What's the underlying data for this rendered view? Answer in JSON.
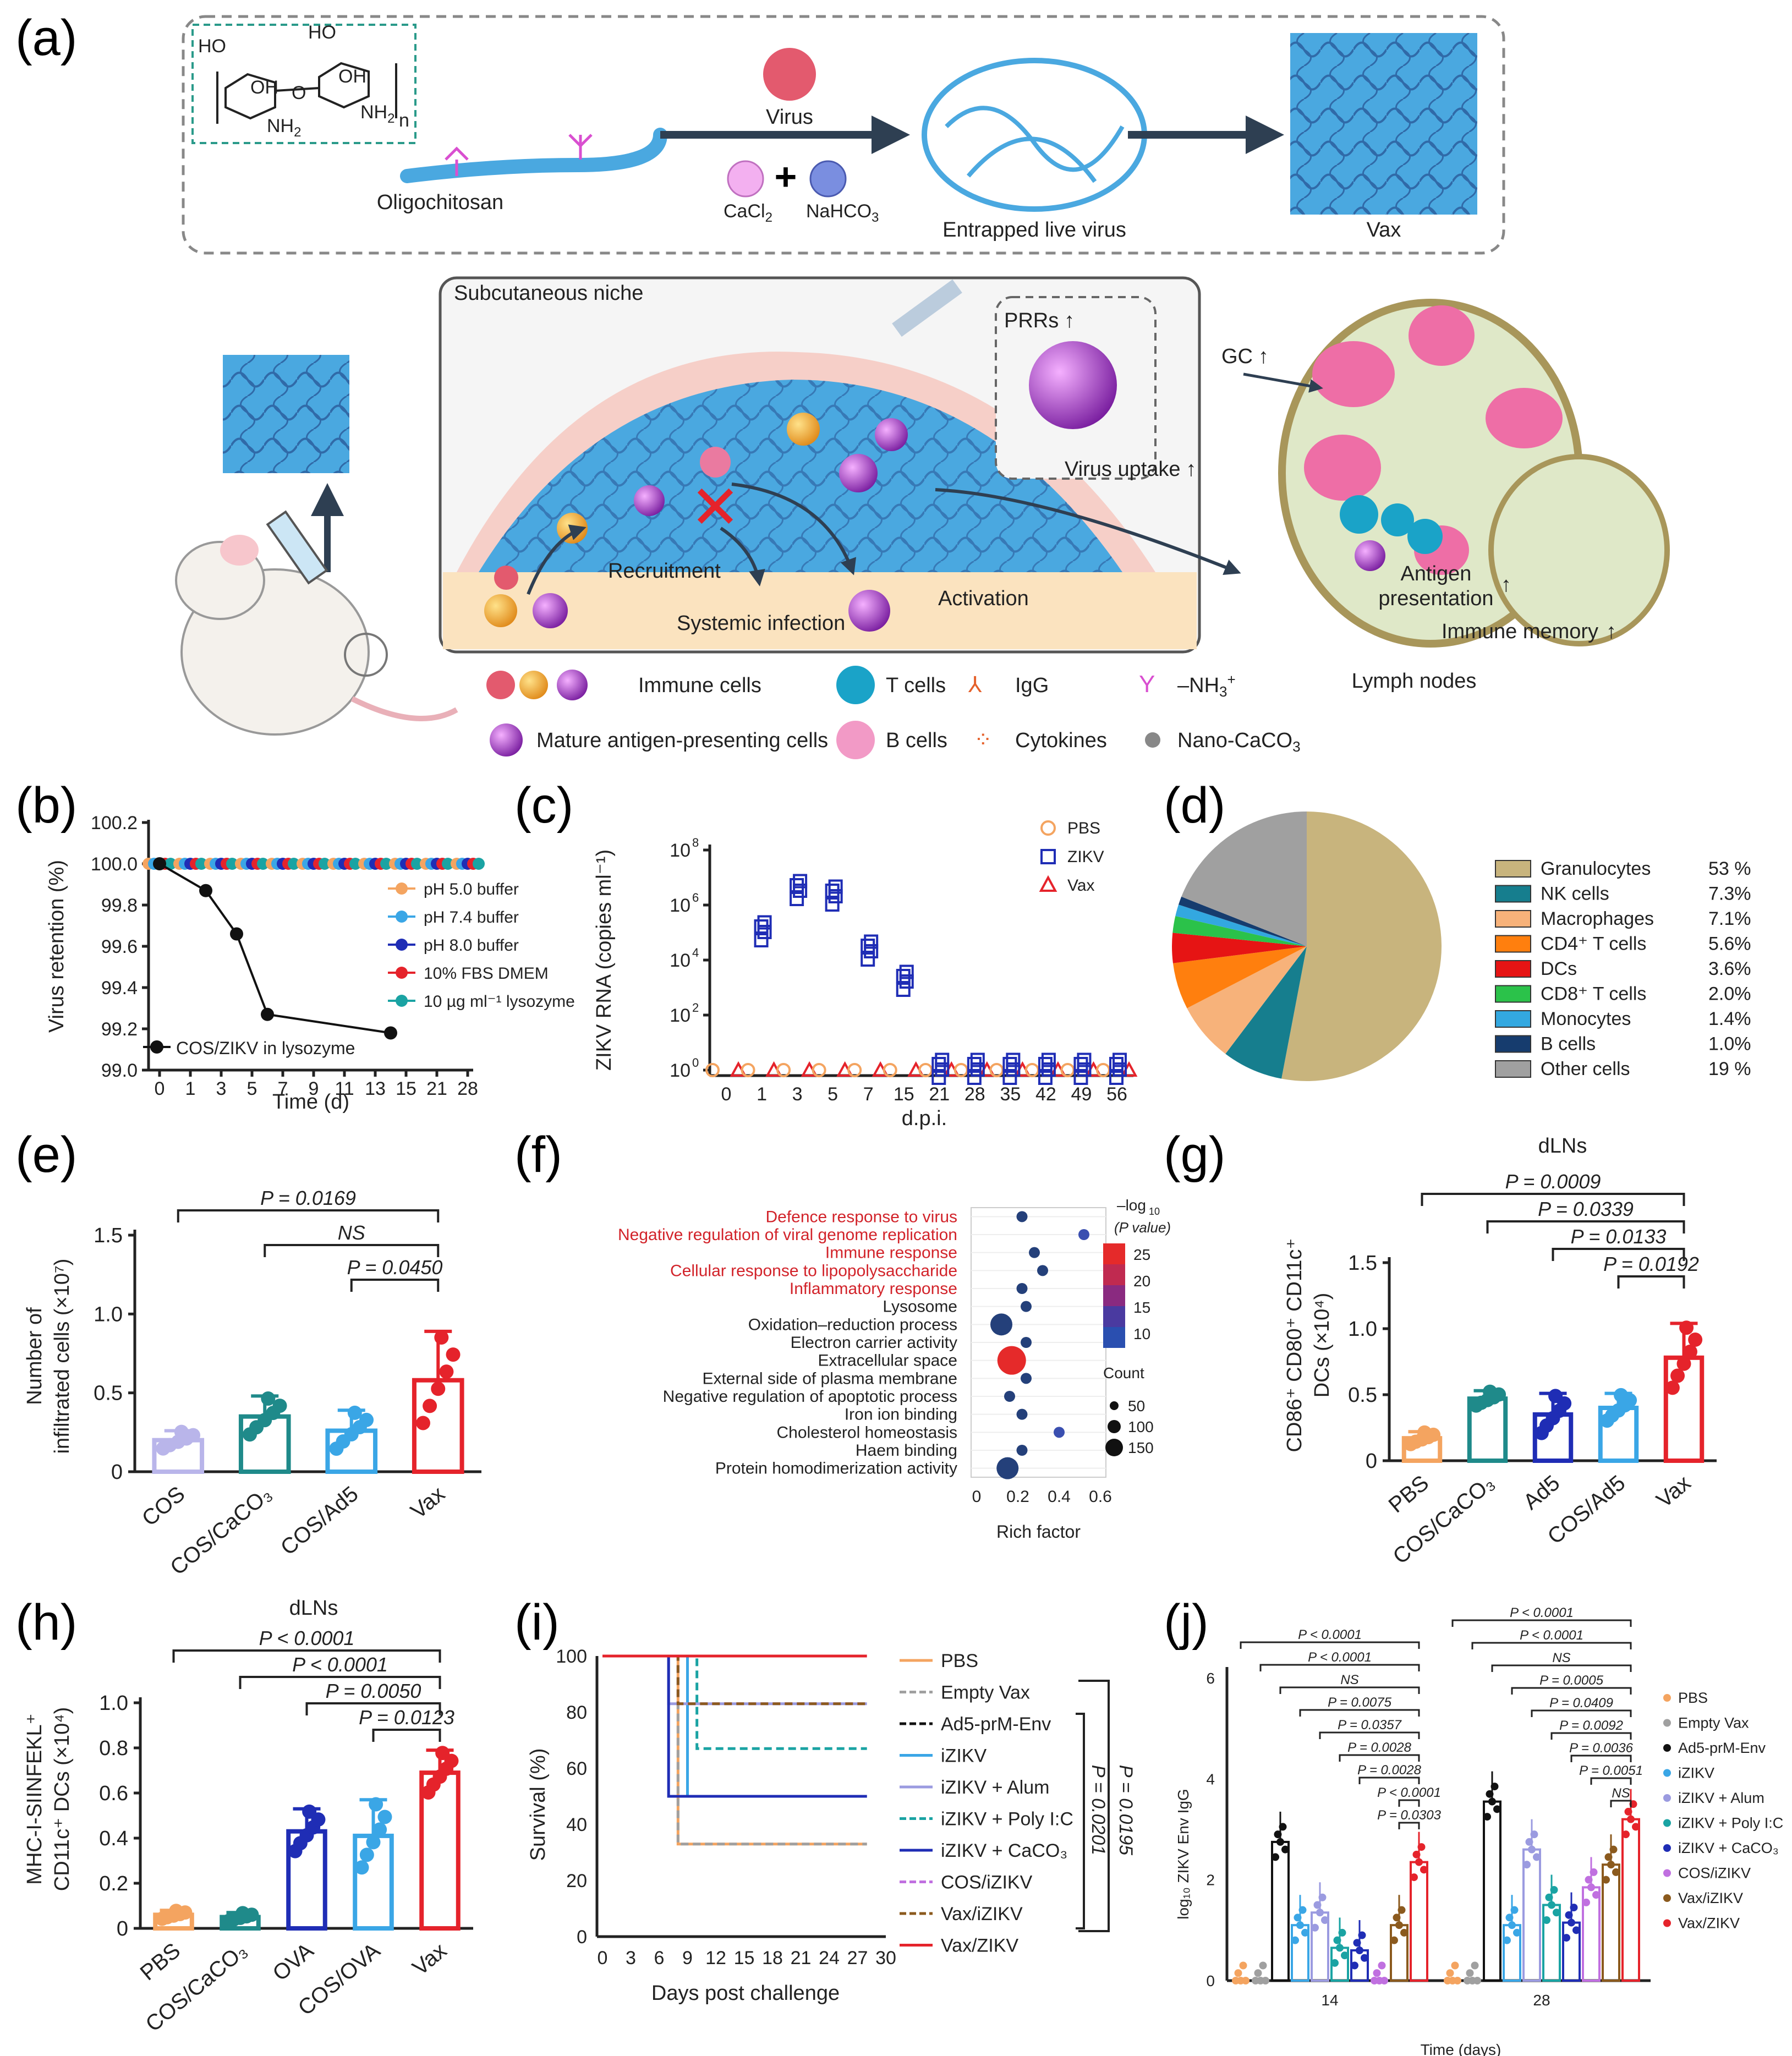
{
  "colors": {
    "gel_blue": "#4aa8e0",
    "fiber": "#2a5a9a",
    "skin_pink": "#f6cfc8",
    "tissue": "#fbe3bf",
    "ln_green": "#dfe8c8",
    "ln_pink": "#ee6ea6",
    "arrow": "#2e3f52",
    "pbs": "#f4a460",
    "empty": "#a0a0a0",
    "ad5": "#111111",
    "izikv": "#3aa6e6",
    "alum": "#9b9be0",
    "polyic": "#1aa3a3",
    "caco3": "#1f2db5",
    "cosizikv": "#c070e0",
    "vaxizikv": "#8b5a1e",
    "vaxzikv": "#e5232b",
    "cos": "#b9b5ea",
    "cos_caco3": "#1f8a8a",
    "cos_ad5": "#3aa6e6",
    "vax": "#e5232b",
    "ova": "#1f2db5",
    "cos_ova": "#3aa6e6"
  },
  "panel_a": {
    "label": "(a)",
    "steps": [
      "Oligochitosan",
      "Entrapped live virus",
      "Vax"
    ],
    "virus": "Virus",
    "cacl2": "CaCl",
    "cacl2_sub": "2",
    "nahco3": "NaHCO",
    "nahco3_sub": "3",
    "niche": "Subcutaneous niche",
    "recruitment": "Recruitment",
    "systemic": "Systemic infection",
    "activation": "Activation",
    "prrs": "PRRs",
    "uptake": "Virus uptake",
    "gc": "GC",
    "antigen1": "Antigen",
    "antigen2": "presentation",
    "memory": "Immune memory",
    "ln": "Lymph nodes",
    "legend": [
      "Immune cells",
      "Mature antigen-presenting cells",
      "T cells",
      "B cells",
      "IgG",
      "Cytokines",
      "–NH",
      "Nano-CaCO"
    ],
    "legend_sup": "+",
    "legend_sub_nh": "3",
    "legend_sub_ca": "3",
    "chem": {
      "ho1": "HO",
      "ho2": "HO",
      "oh1": "OH",
      "oh2": "OH",
      "nh2a": "NH",
      "nh2b": "NH",
      "sub2": "2",
      "o": "O",
      "n": "n"
    }
  },
  "chart_data": [
    {
      "panel": "b",
      "type": "line",
      "label": "(b)",
      "ylabel": "Virus retention (%)",
      "xlabel": "Time (d)",
      "ylim": [
        99.0,
        100.2
      ],
      "yticks": [
        "100.2",
        "100.0",
        "99.8",
        "99.6",
        "99.4",
        "99.2",
        "99.0"
      ],
      "xticks": [
        "0",
        "1",
        "3",
        "5",
        "7",
        "9",
        "11",
        "13",
        "15",
        "21",
        "28"
      ],
      "legend": [
        "pH 5.0 buffer",
        "pH 7.4 buffer",
        "pH 8.0 buffer",
        "10% FBS DMEM",
        "10 µg ml⁻¹ lysozyme"
      ],
      "series_name_cos": "COS/ZIKV in lysozyme",
      "cos_points": [
        [
          0,
          100.0
        ],
        [
          2,
          99.87
        ],
        [
          4,
          99.66
        ],
        [
          6,
          99.27
        ],
        [
          14,
          99.18
        ]
      ],
      "flat_value": 100.0
    },
    {
      "panel": "c",
      "type": "scatter",
      "label": "(c)",
      "ylabel": "ZIKV RNA (copies ml⁻¹)",
      "xlabel": "d.p.i.",
      "yticks": [
        "10",
        "10",
        "10",
        "10",
        "10"
      ],
      "ytick_exp": [
        "8",
        "6",
        "4",
        "2",
        "0"
      ],
      "xticks": [
        "0",
        "1",
        "3",
        "5",
        "7",
        "15",
        "21",
        "28",
        "35",
        "42",
        "49",
        "56"
      ],
      "legend": [
        "PBS",
        "ZIKV",
        "Vax"
      ],
      "zikv_log10": [
        null,
        5.0,
        6.5,
        6.3,
        4.3,
        3.2,
        0,
        0,
        0,
        0,
        0,
        0
      ]
    },
    {
      "panel": "d",
      "type": "pie",
      "label": "(d)",
      "categories": [
        "Granulocytes",
        "NK cells",
        "Macrophages",
        "CD4⁺ T cells",
        "DCs",
        "CD8⁺ T cells",
        "Monocytes",
        "B cells",
        "Other cells"
      ],
      "values": [
        53,
        7.3,
        7.1,
        5.6,
        3.6,
        2.0,
        1.4,
        1.0,
        19
      ],
      "value_labels": [
        "53 %",
        "7.3%",
        "7.1%",
        "5.6%",
        "3.6%",
        "2.0%",
        "1.4%",
        "1.0%",
        "19 %"
      ],
      "colors": [
        "#c8b47d",
        "#167e8e",
        "#f7b27a",
        "#ff7f0e",
        "#e61414",
        "#2bc24a",
        "#33a8e0",
        "#163c6e",
        "#a0a0a0"
      ]
    },
    {
      "panel": "e",
      "type": "bar",
      "label": "(e)",
      "ylabel1": "Number of",
      "ylabel2": "infiltrated cells (×10⁷)",
      "categories": [
        "COS",
        "COS/CaCO₃",
        "COS/Ad5",
        "Vax"
      ],
      "values": [
        0.2,
        0.35,
        0.26,
        0.58
      ],
      "err": [
        0.06,
        0.13,
        0.13,
        0.31
      ],
      "ylim": [
        0,
        1.5
      ],
      "yticks": [
        "0",
        "0.5",
        "1.0",
        "1.5"
      ],
      "stats": [
        "P = 0.0169",
        "NS",
        "P = 0.0450"
      ]
    },
    {
      "panel": "f",
      "type": "scatter",
      "label": "(f)",
      "terms": [
        "Defence response to virus",
        "Negative regulation of viral genome replication",
        "Immune response",
        "Cellular response to lipopolysaccharide",
        "Inflammatory response",
        "Lysosome",
        "Oxidation–reduction process",
        "Electron carrier activity",
        "Extracellular space",
        "External side of plasma membrane",
        "Negative regulation of apoptotic process",
        "Iron ion binding",
        "Cholesterol homeostasis",
        "Haem binding",
        "Protein homodimerization activity"
      ],
      "rich_factor": [
        0.22,
        0.52,
        0.28,
        0.32,
        0.22,
        0.24,
        0.12,
        0.24,
        0.17,
        0.24,
        0.16,
        0.22,
        0.4,
        0.22,
        0.15
      ],
      "red_terms": 5,
      "xlabel": "Rich factor",
      "xticks": [
        "0",
        "0.2",
        "0.4",
        "0.6"
      ],
      "color_title1": "–log",
      "color_title_sub": "10",
      "color_title2": "(P value)",
      "color_ticks": [
        "25",
        "20",
        "15",
        "10"
      ],
      "size_title": "Count",
      "size_ticks": [
        "50",
        "100",
        "150"
      ]
    },
    {
      "panel": "g",
      "type": "bar",
      "label": "(g)",
      "title": "dLNs",
      "ylabel1": "CD86⁺ CD80⁺ CD11c⁺",
      "ylabel2": "DCs (×10⁴)",
      "categories": [
        "PBS",
        "COS/CaCO₃",
        "Ad5",
        "COS/Ad5",
        "Vax"
      ],
      "values": [
        0.17,
        0.47,
        0.35,
        0.4,
        0.78
      ],
      "err": [
        0.05,
        0.06,
        0.16,
        0.11,
        0.26
      ],
      "ylim": [
        0,
        1.5
      ],
      "yticks": [
        "0",
        "0.5",
        "1.0",
        "1.5"
      ],
      "stats": [
        "P = 0.0009",
        "P = 0.0339",
        "P = 0.0133",
        "P = 0.0192"
      ]
    },
    {
      "panel": "h",
      "type": "bar",
      "label": "(h)",
      "title": "dLNs",
      "ylabel1": "MHC-I-SIINFEKL⁺",
      "ylabel2": "CD11c⁺ DCs (×10⁴)",
      "categories": [
        "PBS",
        "COS/CaCO₃",
        "OVA",
        "COS/OVA",
        "Vax"
      ],
      "values": [
        0.06,
        0.05,
        0.43,
        0.41,
        0.69
      ],
      "err": [
        0.02,
        0.02,
        0.1,
        0.16,
        0.1
      ],
      "ylim": [
        0,
        1.0
      ],
      "yticks": [
        "0",
        "0.2",
        "0.4",
        "0.6",
        "0.8",
        "1.0"
      ],
      "stats": [
        "P < 0.0001",
        "P < 0.0001",
        "P = 0.0050",
        "P = 0.0123"
      ]
    },
    {
      "panel": "i",
      "type": "line",
      "label": "(i)",
      "ylabel": "Survival (%)",
      "xlabel": "Days post challenge",
      "yticks": [
        "0",
        "20",
        "40",
        "60",
        "80",
        "100"
      ],
      "xticks": [
        "0",
        "3",
        "6",
        "9",
        "12",
        "15",
        "18",
        "21",
        "24",
        "27",
        "30"
      ],
      "legend": [
        "PBS",
        "Empty Vax",
        "Ad5-prM-Env",
        "iZIKV",
        "iZIKV + Alum",
        "iZIKV + Poly I:C",
        "iZIKV + CaCO₃",
        "COS/iZIKV",
        "Vax/iZIKV",
        "Vax/ZIKV"
      ],
      "final_survival": [
        33,
        33,
        100,
        50,
        83,
        67,
        50,
        83,
        83,
        100
      ],
      "stats": [
        "P = 0.0195",
        "P = 0.0201"
      ]
    },
    {
      "panel": "j",
      "type": "bar",
      "label": "(j)",
      "ylabel": "log₁₀ ZIKV Env IgG",
      "xlabel": "Time (days)",
      "categories": [
        "14",
        "28"
      ],
      "yticks": [
        "0",
        "2",
        "4",
        "6"
      ],
      "legend": [
        "PBS",
        "Empty Vax",
        "Ad5-prM-Env",
        "iZIKV",
        "iZIKV + Alum",
        "iZIKV + Poly I:C",
        "iZIKV + CaCO₃",
        "COS/iZIKV",
        "Vax/iZIKV",
        "Vax/ZIKV"
      ],
      "series_d14": [
        0,
        0,
        2.75,
        1.1,
        1.35,
        0.65,
        0.6,
        0,
        1.1,
        2.35
      ],
      "series_d28": [
        0,
        0,
        3.55,
        1.1,
        2.6,
        1.5,
        1.15,
        1.85,
        2.3,
        3.2
      ],
      "stats14": [
        "P < 0.0001",
        "P < 0.0001",
        "NS",
        "P = 0.0075",
        "P = 0.0357",
        "P = 0.0028",
        "P = 0.0028",
        "P < 0.0001",
        "P = 0.0303"
      ],
      "stats28": [
        "P < 0.0001",
        "P < 0.0001",
        "NS",
        "P = 0.0005",
        "P = 0.0409",
        "P = 0.0092",
        "P = 0.0036",
        "P = 0.0051",
        "NS"
      ]
    }
  ]
}
